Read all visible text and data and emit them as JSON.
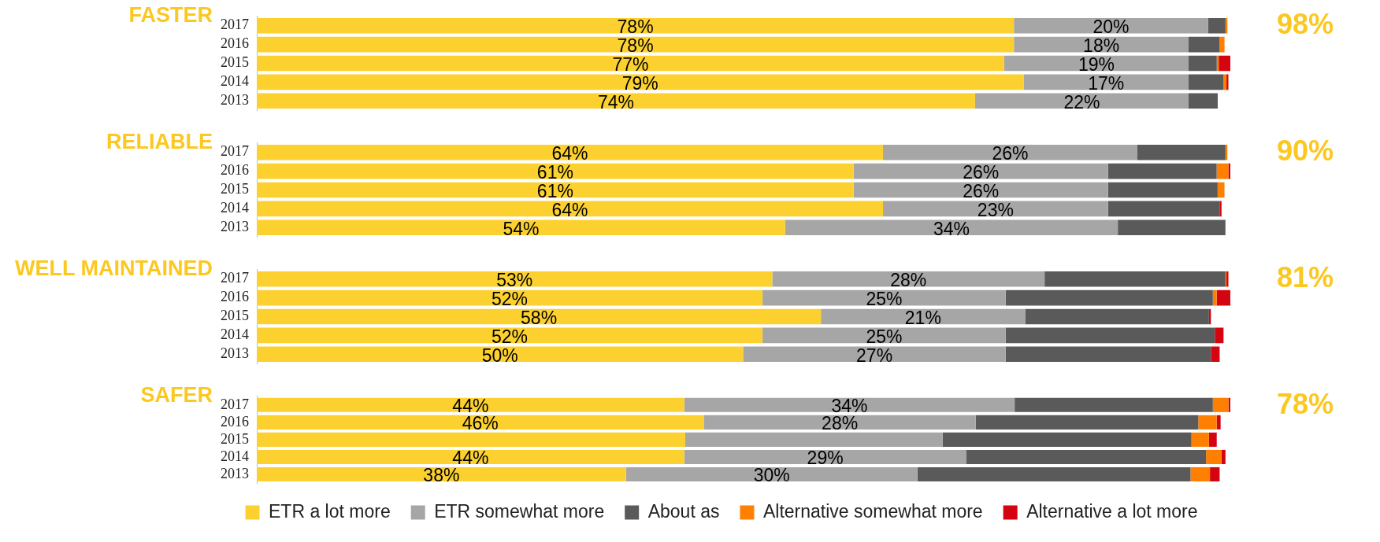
{
  "chart_data": [
    {
      "type": "bar",
      "orientation": "horizontal",
      "stacked": true,
      "title": "FASTER",
      "annotations": [
        "98%"
      ],
      "categories": [
        "2017",
        "2016",
        "2015",
        "2014",
        "2013"
      ],
      "series": [
        {
          "color": "#fcd12f",
          "values": [
            78,
            78,
            77,
            79,
            74
          ],
          "value_labels": [
            "78%",
            "78%",
            "77%",
            "79%",
            "74%"
          ]
        },
        {
          "color": "#a6a6a6",
          "values": [
            20,
            18,
            19,
            17,
            22
          ],
          "value_labels": [
            "20%",
            "18%",
            "19%",
            "17%",
            "22%"
          ]
        },
        {
          "color": "#5a5a5a",
          "values": [
            1.8,
            3.2,
            2.9,
            3.6,
            3.0
          ]
        },
        {
          "color": "#ff7f00",
          "values": [
            0.2,
            0.5,
            0.2,
            0.3,
            0
          ]
        },
        {
          "color": "#d40511",
          "values": [
            0,
            0,
            1.2,
            0.2,
            0
          ]
        }
      ]
    },
    {
      "type": "bar",
      "orientation": "horizontal",
      "stacked": true,
      "title": "RELIABLE",
      "annotations": [
        "90%"
      ],
      "categories": [
        "2017",
        "2016",
        "2015",
        "2014",
        "2013"
      ],
      "series": [
        {
          "color": "#fcd12f",
          "values": [
            64,
            61,
            61,
            64,
            54
          ],
          "value_labels": [
            "64%",
            "61%",
            "61%",
            "64%",
            "54%"
          ]
        },
        {
          "color": "#a6a6a6",
          "values": [
            26,
            26,
            26,
            23,
            34
          ],
          "value_labels": [
            "26%",
            "26%",
            "26%",
            "23%",
            "34%"
          ]
        },
        {
          "color": "#5a5a5a",
          "values": [
            9.0,
            11.1,
            11.2,
            11.4,
            11.0
          ]
        },
        {
          "color": "#ff7f00",
          "values": [
            0.2,
            1.2,
            0.7,
            0,
            0
          ]
        },
        {
          "color": "#d40511",
          "values": [
            0,
            0.2,
            0,
            0.2,
            0
          ]
        }
      ]
    },
    {
      "type": "bar",
      "orientation": "horizontal",
      "stacked": true,
      "title": "WELL MAINTAINED",
      "annotations": [
        "81%"
      ],
      "categories": [
        "2017",
        "2016",
        "2015",
        "2014",
        "2013"
      ],
      "series": [
        {
          "color": "#fcd12f",
          "values": [
            53,
            52,
            58,
            52,
            50
          ],
          "value_labels": [
            "53%",
            "52%",
            "58%",
            "52%",
            "50%"
          ]
        },
        {
          "color": "#a6a6a6",
          "values": [
            28,
            25,
            21,
            25,
            27
          ],
          "value_labels": [
            "28%",
            "25%",
            "21%",
            "25%",
            "27%"
          ]
        },
        {
          "color": "#5a5a5a",
          "values": [
            18.6,
            21.3,
            18.9,
            21.5,
            21.1
          ]
        },
        {
          "color": "#ff7f00",
          "values": [
            0.1,
            0.4,
            0,
            0,
            0
          ]
        },
        {
          "color": "#d40511",
          "values": [
            0.2,
            1.4,
            0.2,
            0.9,
            0.9
          ]
        }
      ]
    },
    {
      "type": "bar",
      "orientation": "horizontal",
      "stacked": true,
      "title": "SAFER",
      "annotations": [
        "78%"
      ],
      "legend": "bottom",
      "categories": [
        "2017",
        "2016",
        "2015",
        "2014",
        "2013"
      ],
      "series": [
        {
          "name": "ETR a lot more",
          "color": "#fcd12f",
          "values": [
            44,
            46,
            44.1,
            44,
            38
          ],
          "value_labels": [
            "44%",
            "46%",
            null,
            "44%",
            "38%"
          ]
        },
        {
          "name": "ETR somewhat more",
          "color": "#a6a6a6",
          "values": [
            34,
            28,
            26.5,
            29,
            30
          ],
          "value_labels": [
            "34%",
            "28%",
            null,
            "29%",
            "30%"
          ]
        },
        {
          "name": "About as",
          "color": "#5a5a5a",
          "values": [
            20.4,
            22.9,
            25.6,
            24.7,
            28.1
          ]
        },
        {
          "name": "Alternative somewhat more",
          "color": "#ff7f00",
          "values": [
            1.6,
            1.9,
            1.8,
            1.6,
            2.0
          ]
        },
        {
          "name": "Alternative a lot more",
          "color": "#d40511",
          "values": [
            0.2,
            0.4,
            0.8,
            0.4,
            1.0
          ]
        }
      ]
    }
  ]
}
